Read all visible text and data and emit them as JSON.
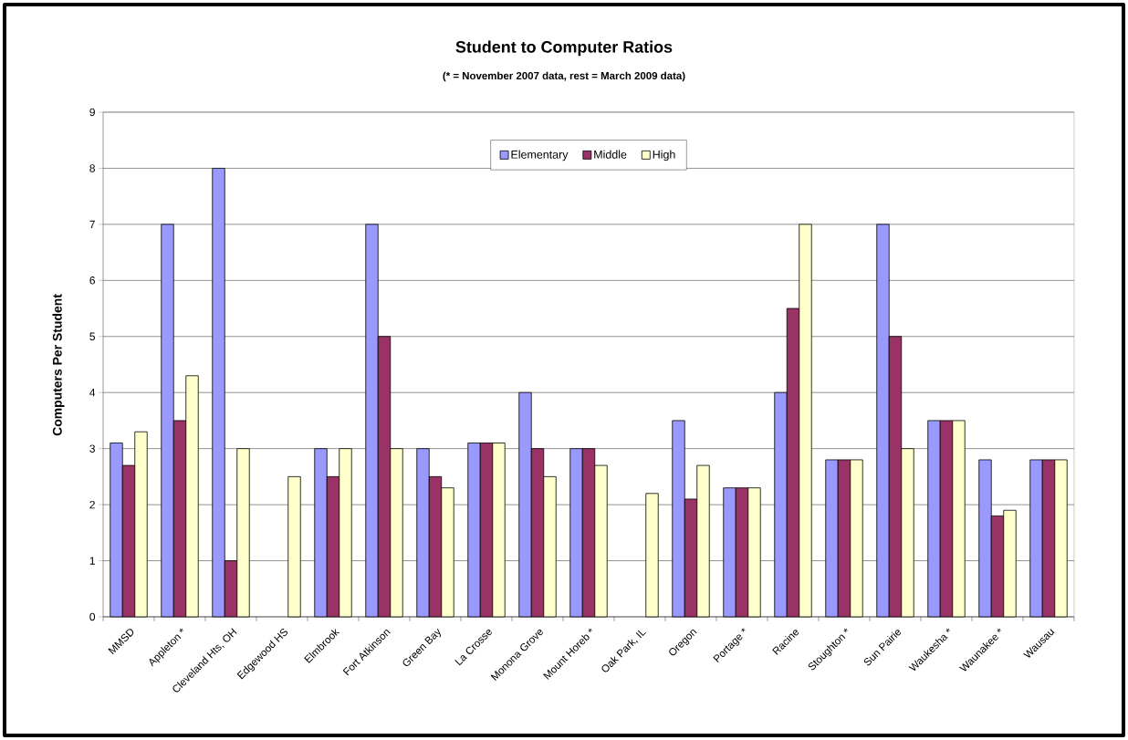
{
  "chart_data": {
    "type": "bar",
    "title": "Student to Computer Ratios",
    "subtitle": "(* = November 2007 data, rest = March 2009 data)",
    "ylabel": "Computers Per Student",
    "categories": [
      "MMSD",
      "Appleton *",
      "Cleveland Hts, OH",
      "Edgewood HS",
      "Elmbrook",
      "Fort Atkinson",
      "Green Bay",
      "La Crosse",
      "Monona Grove",
      "Mount Horeb *",
      "Oak Park, IL",
      "Oregon",
      "Portage *",
      "Racine",
      "Stoughton *",
      "Sun Pairie",
      "Waukesha *",
      "Waunakee *",
      "Wausau"
    ],
    "series": [
      {
        "name": "Elementary",
        "color": "#9999ff",
        "values": [
          3.1,
          7,
          8,
          null,
          3,
          7,
          3,
          3.1,
          4,
          3,
          null,
          3.5,
          2.3,
          4,
          2.8,
          7,
          3.5,
          2.8,
          2.8
        ]
      },
      {
        "name": "Middle",
        "color": "#993366",
        "values": [
          2.7,
          3.5,
          1,
          null,
          2.5,
          5,
          2.5,
          3.1,
          3,
          3,
          null,
          2.1,
          2.3,
          5.5,
          2.8,
          5,
          3.5,
          1.8,
          2.8
        ]
      },
      {
        "name": "High",
        "color": "#ffffcc",
        "values": [
          3.3,
          4.3,
          3,
          2.5,
          3,
          3,
          2.3,
          3.1,
          2.5,
          2.7,
          2.2,
          2.7,
          2.3,
          7,
          2.8,
          3,
          3.5,
          1.9,
          2.8
        ]
      }
    ],
    "ylim": [
      0,
      9
    ],
    "yticks": [
      0,
      1,
      2,
      3,
      4,
      5,
      6,
      7,
      8,
      9
    ],
    "grid": "y",
    "legend": "top"
  }
}
